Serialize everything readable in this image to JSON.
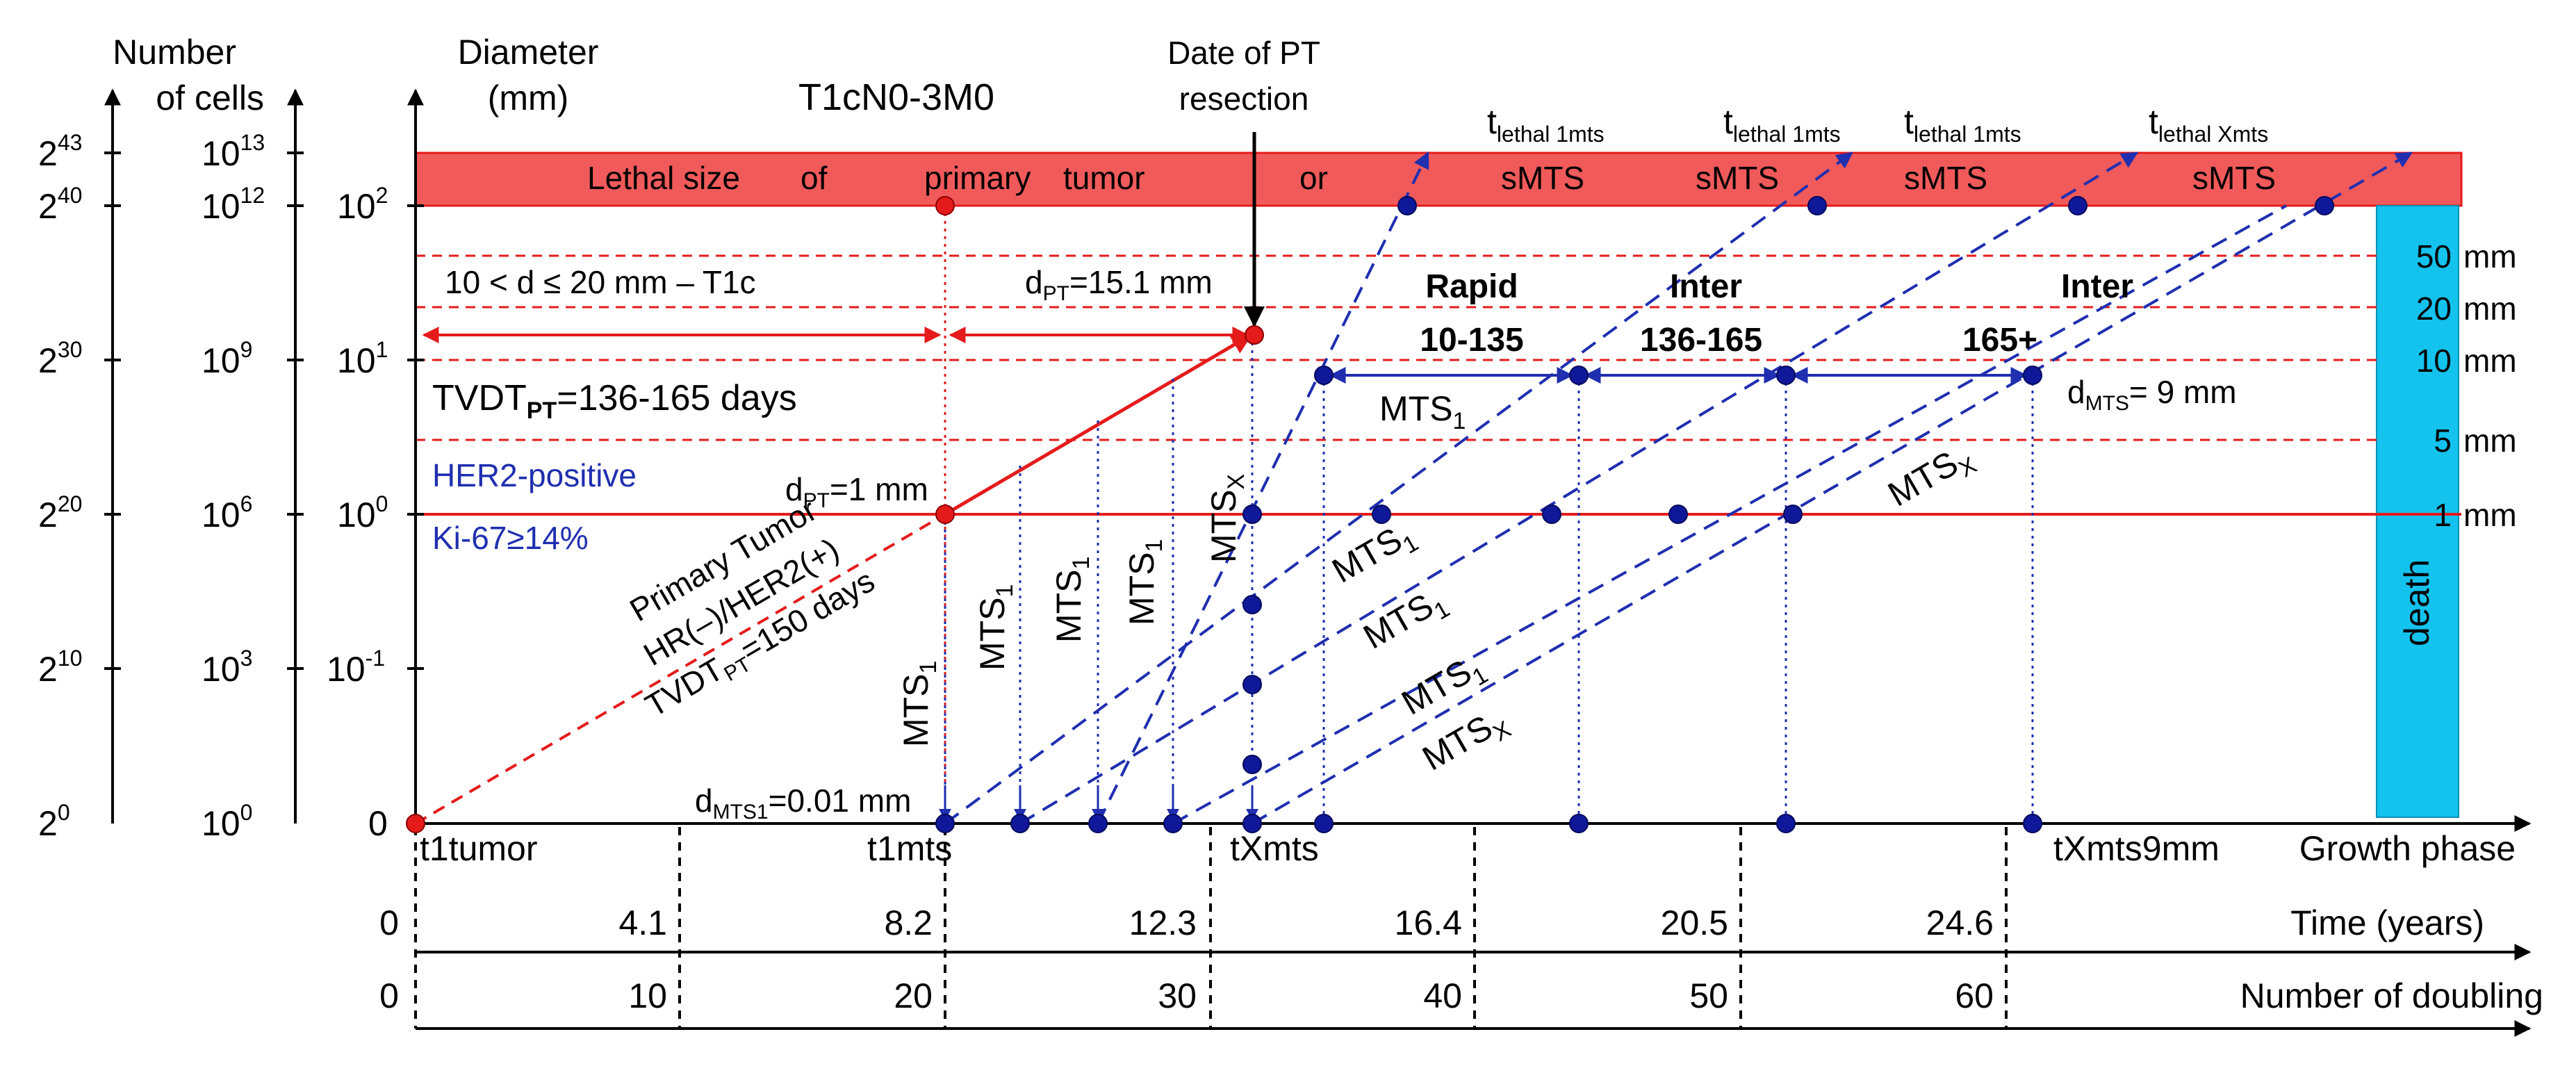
{
  "chart_data": {
    "type": "diagram",
    "title": "T1cN0-3M0",
    "axes": {
      "cells_log2": {
        "label_line1": "Number",
        "label_line2": "of cells",
        "ticks": [
          {
            "base": "2",
            "exp": "43"
          },
          {
            "base": "2",
            "exp": "40"
          },
          {
            "base": "2",
            "exp": "30"
          },
          {
            "base": "2",
            "exp": "20"
          },
          {
            "base": "2",
            "exp": "10"
          },
          {
            "base": "2",
            "exp": "0"
          }
        ]
      },
      "cells_log10": {
        "ticks": [
          {
            "base": "10",
            "exp": "13"
          },
          {
            "base": "10",
            "exp": "12"
          },
          {
            "base": "10",
            "exp": "9"
          },
          {
            "base": "10",
            "exp": "6"
          },
          {
            "base": "10",
            "exp": "3"
          },
          {
            "base": "10",
            "exp": "0"
          }
        ]
      },
      "diameter": {
        "label_line1": "Diameter",
        "label_line2": "(mm)",
        "ticks": [
          {
            "base": "10",
            "exp": "2"
          },
          {
            "base": "10",
            "exp": "1"
          },
          {
            "base": "10",
            "exp": "0"
          },
          {
            "base": "10",
            "exp": "-1"
          },
          {
            "base": "0",
            "exp": ""
          }
        ]
      },
      "growth_phase": {
        "label": "Growth phase",
        "points": [
          "t1tumor",
          "t1mts",
          "tXmts",
          "tXmts9mm"
        ]
      },
      "time_years": {
        "label": "Time (years)",
        "ticks": [
          "0",
          "4.1",
          "8.2",
          "12.3",
          "16.4",
          "20.5",
          "24.6"
        ]
      },
      "doublings": {
        "label": "Number of doubling",
        "ticks": [
          "0",
          "10",
          "20",
          "30",
          "40",
          "50",
          "60"
        ]
      }
    },
    "lethal_band": {
      "words": [
        "Lethal size",
        "of",
        "primary",
        "tumor",
        "or",
        "sMTS",
        "sMTS",
        "sMTS",
        "sMTS"
      ]
    },
    "right_scale": [
      "50",
      "20",
      "10",
      "5",
      "1"
    ],
    "right_scale_unit": "mm",
    "death_label": "death",
    "annotations": {
      "t1c_range": "10 < d ≤ 20 mm – T1c",
      "dpt_final": {
        "pre": "d",
        "sub": "PT",
        "post": "=15.1 mm"
      },
      "dpt_initial": {
        "pre": "d",
        "sub": "PT",
        "post": "=1 mm"
      },
      "date_resection_line1": "Date of PT",
      "date_resection_line2": "resection",
      "tvdt_range": {
        "pre": "TVDT",
        "sub": "PT",
        "post": "=136-165 days"
      },
      "her2": "HER2-positive",
      "ki67": "Ki-67≥14%",
      "primary_tumor": {
        "line1": "Primary Tumor",
        "line2": "HR(–)/HER2(+)",
        "line3_pre": "TVDT",
        "line3_sub": "PT",
        "line3_post": "=150 days"
      },
      "dmts1": {
        "pre": "d",
        "sub": "MTS1",
        "post": "=0.01 mm"
      },
      "dmts": {
        "pre": "d",
        "sub": "MTS",
        "post": "= 9 mm"
      },
      "lethal_labels": [
        {
          "t": "t",
          "sub": "lethal 1mts"
        },
        {
          "t": "t",
          "sub": "lethal 1mts"
        },
        {
          "t": "t",
          "sub": "lethal 1mts"
        },
        {
          "t": "t",
          "sub": "lethal Xmts"
        }
      ],
      "phases": [
        {
          "name": "Rapid",
          "range": "10-135"
        },
        {
          "name": "Inter",
          "range": "136-165"
        },
        {
          "name": "Inter",
          "range": "165+"
        }
      ],
      "mts_vertical": [
        {
          "name": "MTS",
          "sub": "1"
        },
        {
          "name": "MTS",
          "sub": "1"
        },
        {
          "name": "MTS",
          "sub": "1"
        },
        {
          "name": "MTS",
          "sub": "1"
        },
        {
          "name": "MTS",
          "sub": "X"
        }
      ],
      "mts_diagonal": [
        {
          "name": "MTS",
          "sub": "1"
        },
        {
          "name": "MTS",
          "sub": "1"
        },
        {
          "name": "MTS",
          "sub": "1"
        },
        {
          "name": "MTS",
          "sub": "X"
        },
        {
          "name": "MTS",
          "sub": "X"
        }
      ],
      "mts_horizontal": {
        "name": "MTS",
        "sub": "1"
      }
    },
    "colors": {
      "red": "#e51b1b",
      "lethal_fill": "#f15a5a",
      "blue": "#1f2fb0",
      "dot_blue": "#10189a",
      "death_fill": "#14c2ee"
    }
  }
}
